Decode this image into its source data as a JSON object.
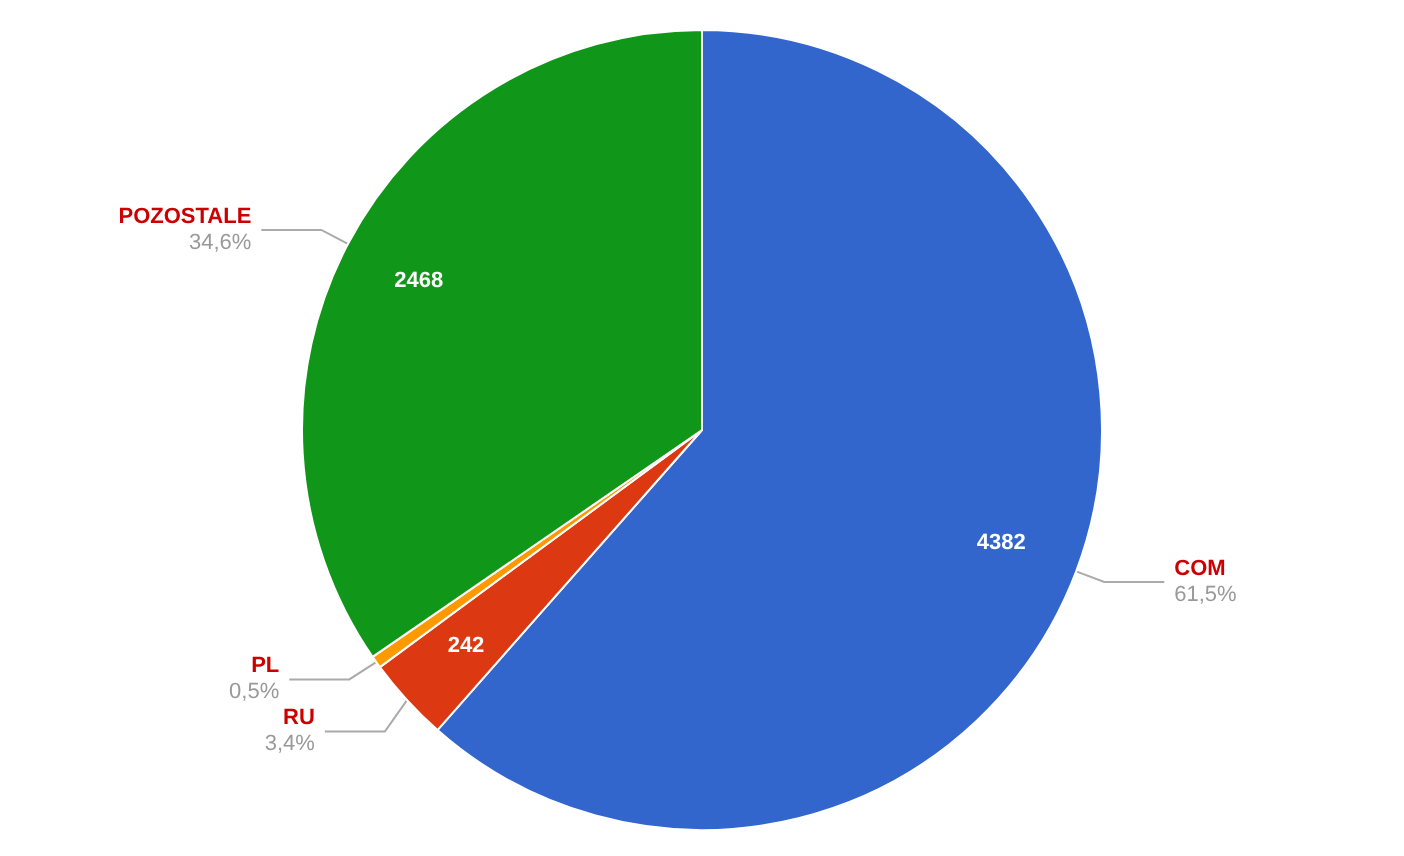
{
  "chart_data": {
    "type": "pie",
    "categories": [
      "COM",
      "RU",
      "PL",
      "POZOSTALE"
    ],
    "values": [
      61.5,
      3.4,
      0.5,
      34.6
    ],
    "colors": [
      "#3366cc",
      "#dc3912",
      "#ff9900",
      "#109618"
    ],
    "value_labels": [
      "61,5%",
      "3,4%",
      "0,5%",
      "34,6%"
    ],
    "annotations": [
      {
        "text": "4382",
        "x": "COM"
      },
      {
        "text": "242",
        "x": "RU"
      },
      {
        "text": "2468",
        "x": "POZOSTALE"
      }
    ],
    "legend": false
  }
}
